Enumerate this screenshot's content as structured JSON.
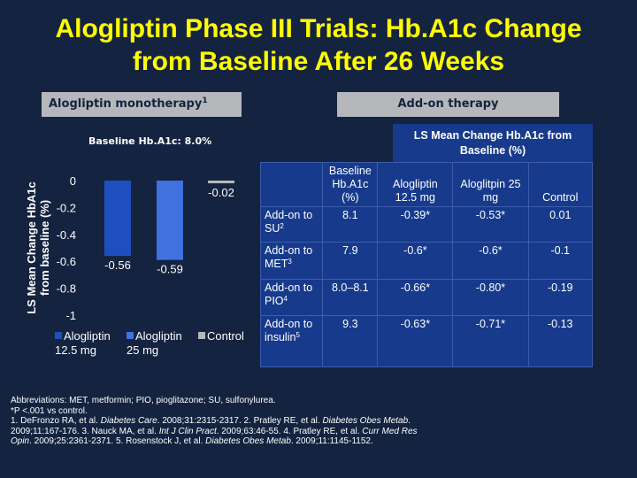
{
  "title": {
    "line1": "Alogliptin Phase III Trials: Hb.A1c Change",
    "line2": "from Baseline After 26 Weeks"
  },
  "headers": {
    "monotherapy": "Alogliptin monotherapy",
    "monotherapy_ref": "1",
    "addon": "Add-on therapy"
  },
  "baseline_note": "Baseline Hb.A1c: 8.0%",
  "chart_data": {
    "type": "bar",
    "ylabel": "LS Mean Change HbA1c from baseline (%)",
    "ylim": [
      -1,
      0
    ],
    "yticks": [
      "0",
      "-0.2",
      "-0.4",
      "-0.6",
      "-0.8",
      "-1"
    ],
    "yticks_values": [
      0,
      -0.2,
      -0.4,
      -0.6,
      -0.8,
      -1
    ],
    "series": [
      {
        "name": "Alogliptin 12.5 mg",
        "value": -0.56,
        "label": "-0.56",
        "color": "#1f4fbf"
      },
      {
        "name": "Alogliptin 25 mg",
        "value": -0.59,
        "label": "-0.59",
        "color": "#3f72de"
      },
      {
        "name": "Control",
        "value": -0.02,
        "label": "-0.02",
        "color": "#b5b7bb"
      }
    ],
    "legend": [
      {
        "label": "Alogliptin\n12.5 mg",
        "color": "#1f4fbf"
      },
      {
        "label": "Alogliptin\n25 mg",
        "color": "#3f72de"
      },
      {
        "label": "Control",
        "color": "#b5b7bb"
      }
    ]
  },
  "ls_box": "LS Mean Change Hb.A1c from\nBaseline (%)",
  "table": {
    "columns": [
      "",
      "Baseline Hb.A1c (%)",
      "Alogliptin 12.5 mg",
      "Aloglitpin 25 mg",
      "Control"
    ],
    "rows": [
      {
        "label": "Add-on to SU",
        "ref": "2",
        "baseline": "8.1",
        "alo125": "-0.39*",
        "alo25": "-0.53*",
        "control": "0.01"
      },
      {
        "label": "Add-on to MET",
        "ref": "3",
        "baseline": "7.9",
        "alo125": "-0.6*",
        "alo25": "-0.6*",
        "control": "-0.1"
      },
      {
        "label": "Add-on to PIO",
        "ref": "4",
        "baseline": "8.0–8.1",
        "alo125": "-0.66*",
        "alo25": "-0.80*",
        "control": "-0.19"
      },
      {
        "label": "Add-on to insulin",
        "ref": "5",
        "baseline": "9.3",
        "alo125": "-0.63*",
        "alo25": "-0.71*",
        "control": "-0.13"
      }
    ]
  },
  "footnotes": {
    "abbrev": "Abbreviations: MET, metformin; PIO, pioglitazone; SU, sulfonylurea.",
    "pvalue": "*P <.001 vs control.",
    "refs_1a": "1. DeFronzo RA, et al. ",
    "refs_1b": "Diabetes Care",
    "refs_1c": ". 2008;31:2315-2317. 2. Pratley RE, et al. ",
    "refs_1d": "Diabetes Obes Metab",
    "refs_1e": ".",
    "refs_2a": "2009;11:167-176. 3. Nauck MA, et al. ",
    "refs_2b": "Int J Clin Pract",
    "refs_2c": ". 2009;63:46-55. 4. Pratley RE, et al. ",
    "refs_2d": "Curr Med Res",
    "refs_3a": "Opin",
    "refs_3b": ". 2009;25:2361-2371. 5. Rosenstock J, et al. ",
    "refs_3c": "Diabetes Obes Metab",
    "refs_3d": ". 2009;11:1145-1152."
  }
}
